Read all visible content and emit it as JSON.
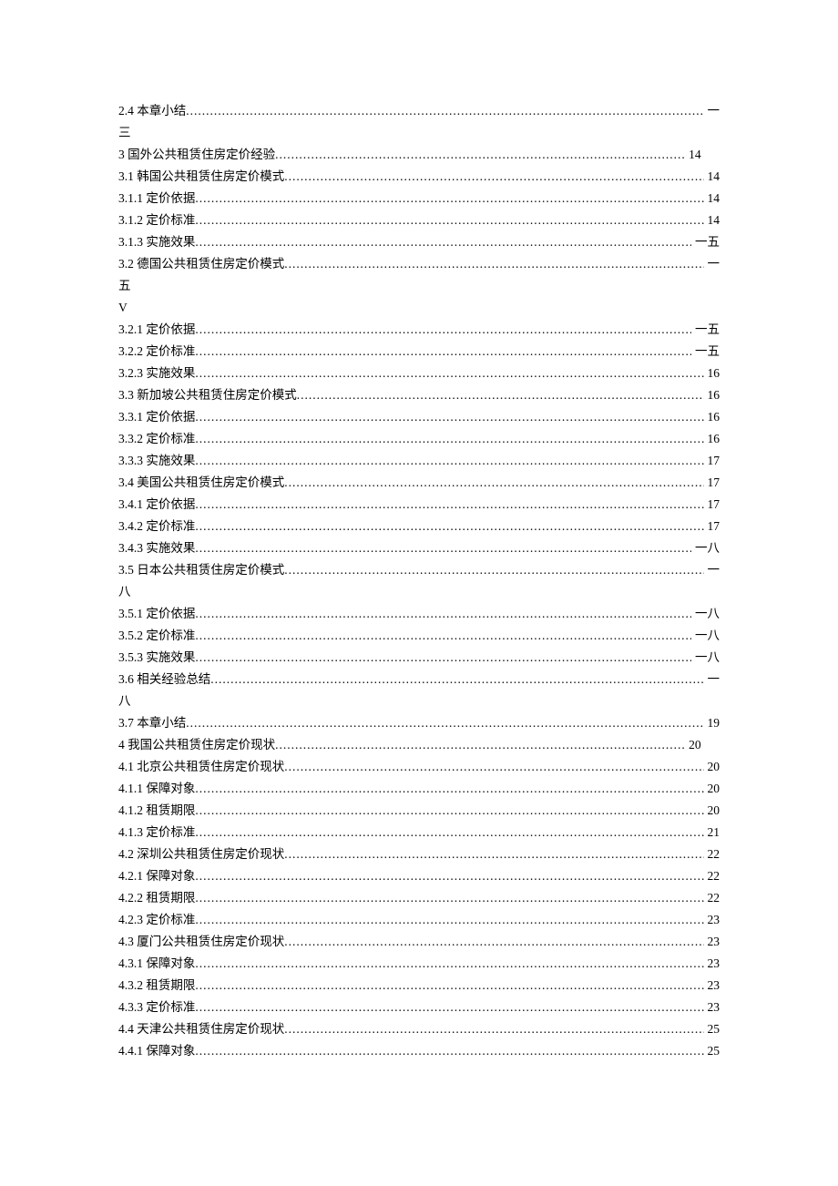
{
  "dots": "................................................................................................................................................................................................................",
  "entries": [
    {
      "type": "line",
      "label": "2.4  本章小结",
      "page": "一",
      "cls": ""
    },
    {
      "type": "text",
      "label": "三"
    },
    {
      "type": "line",
      "label": "3  国外公共租赁住房定价经验  ",
      "page": "14",
      "cls": "short1"
    },
    {
      "type": "line",
      "label": "3.1  韩国公共租赁住房定价模式",
      "page": " 14",
      "cls": ""
    },
    {
      "type": "line",
      "label": "3.1.1  定价依据  ",
      "page": " 14",
      "cls": ""
    },
    {
      "type": "line",
      "label": "3.1.2  定价标准  ",
      "page": " 14",
      "cls": ""
    },
    {
      "type": "line",
      "label": "3.1.3  实施效果  ",
      "page": "  一五",
      "cls": ""
    },
    {
      "type": "line",
      "label": "3.2  德国公共租赁住房定价模式",
      "page": "  一",
      "cls": ""
    },
    {
      "type": "text",
      "label": "五"
    },
    {
      "type": "text",
      "label": "V"
    },
    {
      "type": "line",
      "label": "3.2.1  定价依据  ",
      "page": "  一五",
      "cls": ""
    },
    {
      "type": "line",
      "label": "3.2.2  定价标准  ",
      "page": "  一五",
      "cls": ""
    },
    {
      "type": "line",
      "label": "3.2.3  实施效果  ",
      "page": " 16",
      "cls": ""
    },
    {
      "type": "line",
      "label": "3.3  新加坡公共租赁住房定价模式",
      "page": " 16",
      "cls": ""
    },
    {
      "type": "line",
      "label": "3.3.1  定价依据  ",
      "page": " 16",
      "cls": ""
    },
    {
      "type": "line",
      "label": "3.3.2  定价标准  ",
      "page": " 16",
      "cls": ""
    },
    {
      "type": "line",
      "label": "3.3.3  实施效果  ",
      "page": " 17",
      "cls": ""
    },
    {
      "type": "line",
      "label": "3.4  美国公共租赁住房定价模式",
      "page": " 17",
      "cls": ""
    },
    {
      "type": "line",
      "label": "3.4.1  定价依据  ",
      "page": " 17",
      "cls": ""
    },
    {
      "type": "line",
      "label": "3.4.2  定价标准  ",
      "page": " 17",
      "cls": ""
    },
    {
      "type": "line",
      "label": "3.4.3  实施效果  ",
      "page": "  一八",
      "cls": ""
    },
    {
      "type": "line",
      "label": "3.5  日本公共租赁住房定价模式",
      "page": "  一",
      "cls": ""
    },
    {
      "type": "text",
      "label": "八"
    },
    {
      "type": "line",
      "label": "3.5.1  定价依据  ",
      "page": "  一八",
      "cls": ""
    },
    {
      "type": "line",
      "label": "3.5.2  定价标准  ",
      "page": "  一八",
      "cls": ""
    },
    {
      "type": "line",
      "label": "3.5.3  实施效果  ",
      "page": "  一八",
      "cls": ""
    },
    {
      "type": "line",
      "label": "3.6  相关经验总结",
      "page": "  一",
      "cls": ""
    },
    {
      "type": "text",
      "label": "八"
    },
    {
      "type": "line",
      "label": "3.7  本章小结",
      "page": " 19",
      "cls": ""
    },
    {
      "type": "line",
      "label": "4  我国公共租赁住房定价现状  ",
      "page": "20",
      "cls": "short2"
    },
    {
      "type": "line",
      "label": "4.1  北京公共租赁住房定价现状",
      "page": " 20",
      "cls": ""
    },
    {
      "type": "line",
      "label": "4.1.1  保障对象  ",
      "page": " 20",
      "cls": ""
    },
    {
      "type": "line",
      "label": "4.1.2  租赁期限  ",
      "page": " 20",
      "cls": ""
    },
    {
      "type": "line",
      "label": "4.1.3  定价标准  ",
      "page": " 21",
      "cls": ""
    },
    {
      "type": "line",
      "label": "4.2  深圳公共租赁住房定价现状",
      "page": " 22",
      "cls": ""
    },
    {
      "type": "line",
      "label": "4.2.1  保障对象  ",
      "page": " 22",
      "cls": ""
    },
    {
      "type": "line",
      "label": "4.2.2  租赁期限  ",
      "page": " 22",
      "cls": ""
    },
    {
      "type": "line",
      "label": "4.2.3  定价标准  ",
      "page": " 23",
      "cls": ""
    },
    {
      "type": "line",
      "label": "4.3  厦门公共租赁住房定价现状",
      "page": " 23",
      "cls": ""
    },
    {
      "type": "line",
      "label": "4.3.1  保障对象  ",
      "page": " 23",
      "cls": ""
    },
    {
      "type": "line",
      "label": "4.3.2  租赁期限  ",
      "page": " 23",
      "cls": ""
    },
    {
      "type": "line",
      "label": "4.3.3  定价标准  ",
      "page": " 23",
      "cls": ""
    },
    {
      "type": "line",
      "label": "4.4  天津公共租赁住房定价现状",
      "page": " 25",
      "cls": ""
    },
    {
      "type": "line",
      "label": "4.4.1  保障对象  ",
      "page": " 25",
      "cls": ""
    }
  ]
}
